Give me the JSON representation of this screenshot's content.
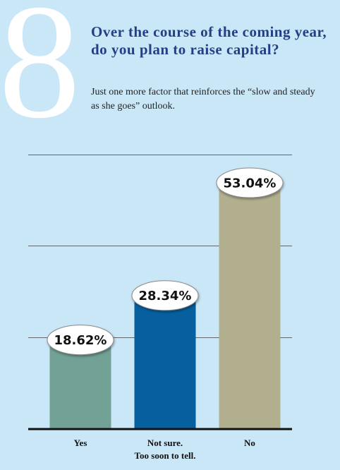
{
  "header": {
    "number": "8",
    "title": "Over the course of the coming year, do you plan to raise capital?",
    "subtitle": "Just one more factor that reinforces the “slow and steady as she goes” outlook."
  },
  "chart_data": {
    "type": "bar",
    "categories": [
      [
        "Yes"
      ],
      [
        "Not sure.",
        "Too soon to tell."
      ],
      [
        "No"
      ]
    ],
    "values": [
      18.62,
      28.34,
      53.04
    ],
    "value_labels": [
      "18.62%",
      "28.34%",
      "53.04%"
    ],
    "ylim": [
      0,
      60
    ],
    "grid": true,
    "colors": [
      "#72a196",
      "#065f9e",
      "#b2af8f"
    ]
  }
}
